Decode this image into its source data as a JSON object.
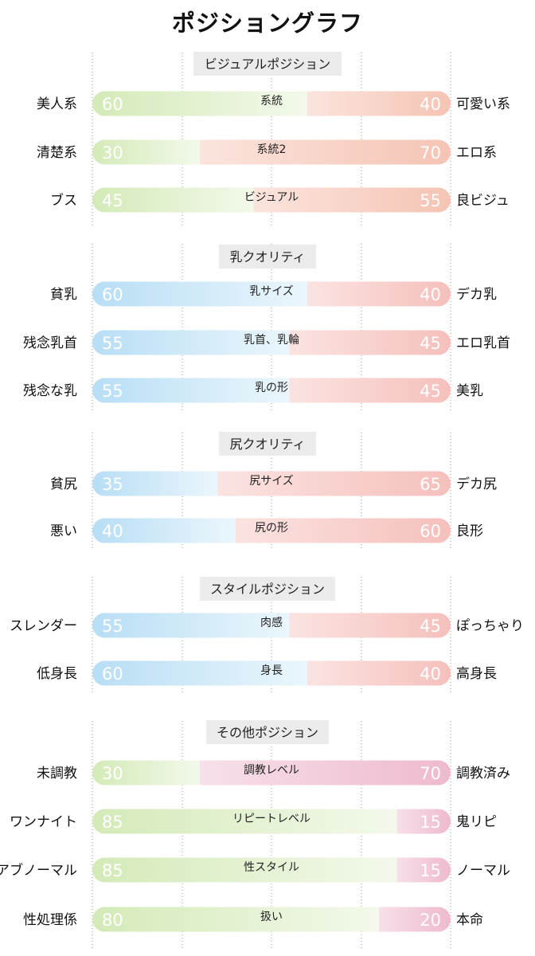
{
  "title": "ポジショングラフ",
  "chart_data": {
    "type": "bar",
    "title": "ポジショングラフ",
    "sections": [
      {
        "name": "ビジュアルポジション",
        "left_color": "#d4eab8",
        "right_color": "#f5c4b4",
        "rows": [
          {
            "label": "系統",
            "left_label": "美人系",
            "right_label": "可愛い系",
            "left": 60,
            "right": 40
          },
          {
            "label": "系統2",
            "left_label": "清楚系",
            "right_label": "エロ系",
            "left": 30,
            "right": 70
          },
          {
            "label": "ビジュアル",
            "left_label": "ブス",
            "right_label": "良ビジュ",
            "left": 45,
            "right": 55
          }
        ]
      },
      {
        "name": "乳クオリティ",
        "left_color": "#b8def5",
        "right_color": "#f5c0bc",
        "rows": [
          {
            "label": "乳サイズ",
            "left_label": "貧乳",
            "right_label": "デカ乳",
            "left": 60,
            "right": 40
          },
          {
            "label": "乳首、乳輪",
            "left_label": "残念乳首",
            "right_label": "エロ乳首",
            "left": 55,
            "right": 45
          },
          {
            "label": "乳の形",
            "left_label": "残念な乳",
            "right_label": "美乳",
            "left": 55,
            "right": 45
          }
        ]
      },
      {
        "name": "尻クオリティ",
        "left_color": "#b8def5",
        "right_color": "#f5c0bc",
        "rows": [
          {
            "label": "尻サイズ",
            "left_label": "貧尻",
            "right_label": "デカ尻",
            "left": 35,
            "right": 65
          },
          {
            "label": "尻の形",
            "left_label": "悪い",
            "right_label": "良形",
            "left": 40,
            "right": 60
          }
        ]
      },
      {
        "name": "スタイルポジション",
        "left_color": "#b8def5",
        "right_color": "#f5c0bc",
        "rows": [
          {
            "label": "肉感",
            "left_label": "スレンダー",
            "right_label": "ぽっちゃり",
            "left": 55,
            "right": 45
          },
          {
            "label": "身長",
            "left_label": "低身長",
            "right_label": "高身長",
            "left": 60,
            "right": 40
          }
        ]
      },
      {
        "name": "その他ポジション",
        "left_color": "#d4eab8",
        "right_color": "#eebace",
        "rows": [
          {
            "label": "調教レベル",
            "left_label": "未調教",
            "right_label": "調教済み",
            "left": 30,
            "right": 70
          },
          {
            "label": "リピートレベル",
            "left_label": "ワンナイト",
            "right_label": "鬼リピ",
            "left": 85,
            "right": 15
          },
          {
            "label": "性スタイル",
            "left_label": "アブノーマル",
            "right_label": "ノーマル",
            "left": 85,
            "right": 15
          },
          {
            "label": "扱い",
            "left_label": "性処理係",
            "right_label": "本命",
            "left": 80,
            "right": 20
          }
        ]
      }
    ]
  }
}
